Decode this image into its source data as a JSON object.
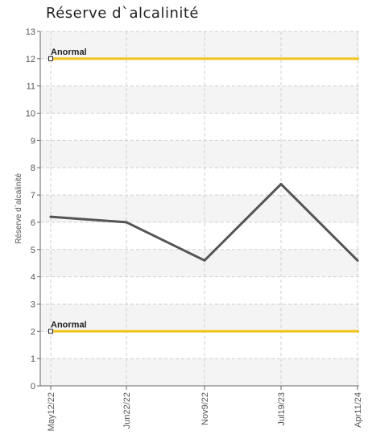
{
  "chart_data": {
    "type": "line",
    "title": "Réserve d`alcalinité",
    "xlabel": "",
    "ylabel": "Réserve d`alcalinité",
    "categories": [
      "May12/22",
      "Jun22/22",
      "Nov9/22",
      "Jul19/23",
      "Apr11/24"
    ],
    "series": [
      {
        "values": [
          6.2,
          6.0,
          4.6,
          7.4,
          4.6
        ]
      }
    ],
    "ylim": [
      0,
      13
    ],
    "yticks": [
      0,
      1,
      2,
      3,
      4,
      5,
      6,
      7,
      8,
      9,
      10,
      11,
      12,
      13
    ],
    "grid": true,
    "reference_lines": [
      {
        "label": "Anormal",
        "value": 12
      },
      {
        "label": "Anormal",
        "value": 2
      }
    ],
    "colors": {
      "series": "#555555",
      "reference": "#f2c21b",
      "band": "#f4f4f4",
      "grid": "#cfcfcf",
      "axis": "#666666"
    }
  }
}
